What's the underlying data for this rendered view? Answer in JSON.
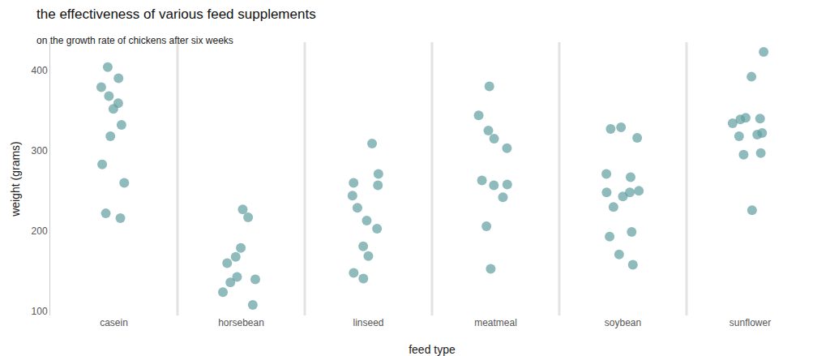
{
  "chart_data": {
    "type": "strip",
    "title": "the effectiveness of various feed supplements",
    "subtitle": "on the growth rate of chickens after six weeks",
    "x_label": "feed type",
    "y_label": "weight (grams)",
    "categories": [
      "casein",
      "horsebean",
      "linseed",
      "meatmeal",
      "soybean",
      "sunflower"
    ],
    "values": [
      [
        368,
        390,
        379,
        260,
        404,
        318,
        352,
        359,
        216,
        222,
        283,
        332
      ],
      [
        179,
        160,
        136,
        227,
        217,
        168,
        108,
        124,
        143,
        140
      ],
      [
        309,
        229,
        181,
        141,
        260,
        203,
        148,
        169,
        213,
        257,
        244,
        271
      ],
      [
        325,
        257,
        303,
        315,
        380,
        153,
        263,
        242,
        206,
        344,
        258
      ],
      [
        243,
        230,
        248,
        327,
        329,
        250,
        193,
        271,
        316,
        267,
        199,
        171,
        158,
        248
      ],
      [
        423,
        340,
        392,
        339,
        341,
        226,
        320,
        295,
        334,
        322,
        297,
        318
      ]
    ],
    "color": "#5f9ea0",
    "ylim": [
      95,
      435
    ],
    "yticks": [
      100,
      200,
      300,
      400
    ],
    "grid": false
  }
}
